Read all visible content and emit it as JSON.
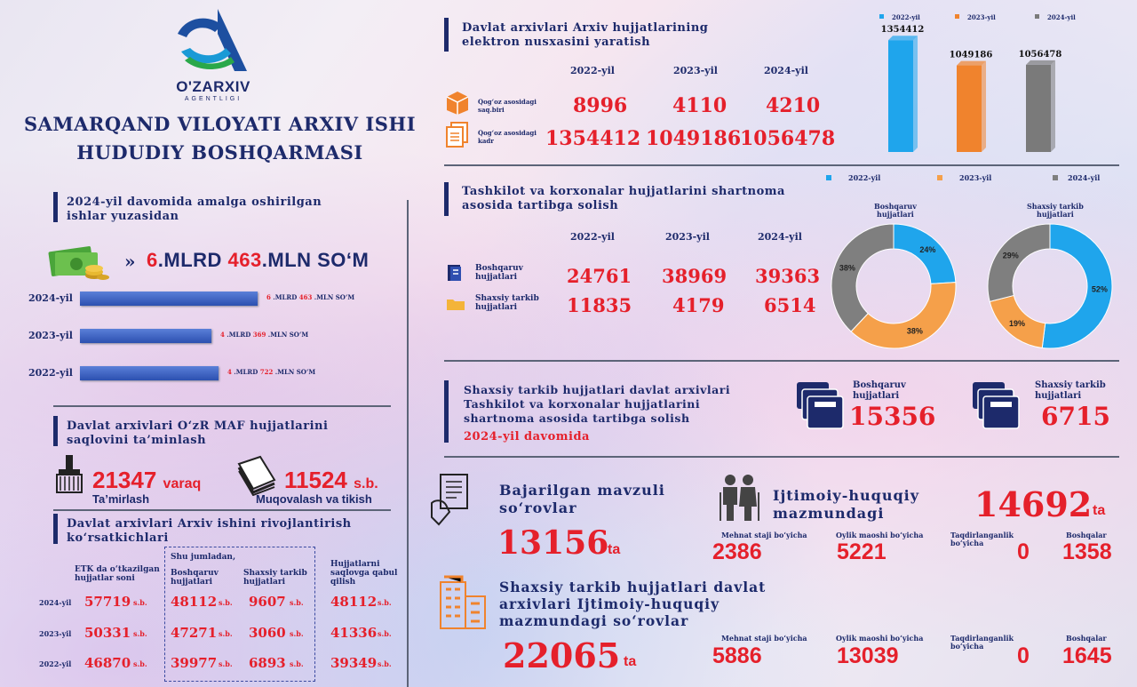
{
  "brand": {
    "logo_text": "O'ZARXIV",
    "logo_sub": "AGENTLIGI"
  },
  "title": {
    "line1": "SAMARQAND VILOYATI ARXIV ISHI",
    "line2": "HUDUDIY BOSHQARMASI"
  },
  "works": {
    "header": [
      "2024-yil  davomida amalga oshirilgan",
      "ishlar yuzasidan"
    ],
    "total": {
      "mlrd": "6",
      "mlrd_unit": ".MLRD",
      "mln": "463",
      "mln_unit": ".MLN SO‘M"
    },
    "bars": [
      {
        "year": "2024-yil",
        "mlrd": "6",
        "mln": "463",
        "unit1": ".MLRD",
        "unit2": ".MLN SO‘M",
        "fraction": 1.0
      },
      {
        "year": "2023-yil",
        "mlrd": "4",
        "mln": "369",
        "unit1": ".MLRD",
        "unit2": ".MLN SO‘M",
        "fraction": 0.74
      },
      {
        "year": "2022-yil",
        "mlrd": "4",
        "mln": "722",
        "unit1": ".MLRD",
        "unit2": ".MLN SO‘M",
        "fraction": 0.78
      }
    ]
  },
  "preserve": {
    "header": [
      "Davlat arxivlari  O‘zR MAF hujjatlarini",
      "saqlovini ta’minlash"
    ],
    "repair": {
      "value": "21347",
      "unit": "varaq",
      "label": "Ta’mirlash"
    },
    "bind": {
      "value": "11524",
      "unit": "s.b.",
      "label": "Muqovalash va tikish"
    }
  },
  "dev": {
    "header": [
      "Davlat arxivlari Arxiv ishini rivojlantirish",
      "ko‘rsatkichlari"
    ],
    "col_etk": [
      "ETK da o‘tkazilgan",
      "hujjatlar soni"
    ],
    "shu": "Shu jumladan,",
    "col_bosh": [
      "Boshqaruv",
      "hujjatlari"
    ],
    "col_shax": [
      "Shaxsiy tarkib",
      "hujjatlari"
    ],
    "col_accept": [
      "Hujjatlarni",
      "saqlovga qabul",
      "qilish"
    ],
    "unit": "s.b.",
    "rows": [
      {
        "year": "2024-yil",
        "etk": "57719",
        "bosh": "48112",
        "shax": "9607",
        "acc": "48112"
      },
      {
        "year": "2023-yil",
        "etk": "50331",
        "bosh": "47271",
        "shax": "3060",
        "acc": "41336"
      },
      {
        "year": "2022-yil",
        "etk": "46870",
        "bosh": "39977",
        "shax": "6893",
        "acc": "39349"
      }
    ]
  },
  "digital": {
    "header": [
      "Davlat arxivlari Arxiv hujjatlarining",
      "elektron nusxasini yaratish"
    ],
    "years": [
      "2022-yil",
      "2023-yil",
      "2024-yil"
    ],
    "row1_label": [
      "Qog‘oz asosidagi",
      "saq.biri"
    ],
    "row1": [
      "8996",
      "4110",
      "4210"
    ],
    "row2_label": [
      "Qog‘oz asosidagi",
      "kadr"
    ],
    "row2": [
      "1354412",
      "1049186",
      "1056478"
    ]
  },
  "chart_data": [
    {
      "type": "bar",
      "series": [
        {
          "name": "2022-yil",
          "values": [
            1354412
          ]
        },
        {
          "name": "2023-yil",
          "values": [
            1049186
          ]
        },
        {
          "name": "2024-yil",
          "values": [
            1056478
          ]
        }
      ],
      "colors": [
        "#1fa5ec",
        "#f0832d",
        "#7a7a7a"
      ],
      "legend": "top",
      "ylim": [
        0,
        1400000
      ]
    },
    {
      "type": "pie",
      "title": "Boshqaruv hujjatlari",
      "labels": [
        "2022-yil",
        "2023-yil",
        "2024-yil"
      ],
      "values": [
        24,
        38,
        38
      ],
      "colors": [
        "#1fa5ec",
        "#f5a04a",
        "#7f7f7f"
      ]
    },
    {
      "type": "pie",
      "title": "Shaxsiy tarkib hujjatlari",
      "labels": [
        "2022-yil",
        "2023-yil",
        "2024-yil"
      ],
      "values": [
        52,
        19,
        29
      ],
      "colors": [
        "#1fa5ec",
        "#f5a04a",
        "#7f7f7f"
      ]
    }
  ],
  "contract": {
    "header": [
      "Tashkilot va korxonalar hujjatlarini shartnoma",
      "asosida tartibga solish"
    ],
    "years": [
      "2022-yil",
      "2023-yil",
      "2024-yil"
    ],
    "legend": [
      "2022-yil",
      "2023-yil",
      "2024-yil"
    ],
    "row1_label": [
      "Boshqaruv",
      "hujjatlari"
    ],
    "row1": [
      "24761",
      "38969",
      "39363"
    ],
    "row2_label": [
      "Shaxsiy tarkib",
      "hujjatlari"
    ],
    "row2": [
      "11835",
      "4179",
      "6514"
    ],
    "pie1_title": [
      "Boshqaruv",
      "hujjatlari"
    ],
    "pie2_title": [
      "Shaxsiy tarkib",
      "hujjatlari"
    ]
  },
  "personnel": {
    "header": [
      "Shaxsiy tarkib hujjatlari davlat arxivlari",
      "Tashkilot va korxonalar hujjatlarini",
      "shartnoma asosida tartibga solish"
    ],
    "period": "2024-yil  davomida",
    "bosh_label": [
      "Boshqaruv",
      "hujjatlari"
    ],
    "bosh_value": "15356",
    "shax_label": [
      "Shaxsiy tarkib",
      "hujjatlari"
    ],
    "shax_value": "6715"
  },
  "queries": {
    "thematic_label": [
      "Bajarilgan mavzuli",
      "so‘rovlar"
    ],
    "thematic_value": "13156",
    "ta": "ta",
    "social_label": [
      "Ijtimoiy-huquqiy",
      "mazmundagi"
    ],
    "social_value": "14692",
    "cats": [
      "Mehnat staji bo‘yicha",
      "Oylik maoshi bo‘yicha",
      "Taqdirlanganlik bo‘yicha",
      "Boshqalar"
    ],
    "social_vals": [
      "2386",
      "5221",
      "0",
      "1358"
    ],
    "personal_label": [
      "Shaxsiy tarkib hujjatlari davlat",
      "arxivlari Ijtimoiy-huquqiy",
      "mazmundagi so‘rovlar"
    ],
    "personal_value": "22065",
    "personal_vals": [
      "5886",
      "13039",
      "0",
      "1645"
    ]
  }
}
